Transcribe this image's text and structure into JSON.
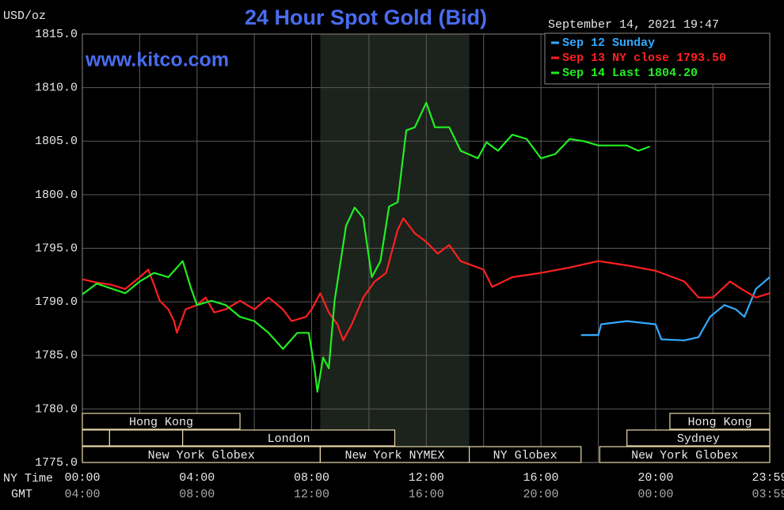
{
  "chart_data": {
    "type": "line",
    "title": "24 Hour Spot Gold (Bid)",
    "ylabel": "USD/oz",
    "watermark": "www.kitco.com",
    "timestamp": "September 14, 2021 19:47",
    "x_row_labels": [
      "NY Time",
      "GMT"
    ],
    "xlim": [
      0,
      23.9833
    ],
    "xticks": [
      {
        "value": 0,
        "label": "00:00"
      },
      {
        "value": 4,
        "label": "04:00"
      },
      {
        "value": 8,
        "label": "08:00"
      },
      {
        "value": 12,
        "label": "12:00"
      },
      {
        "value": 16,
        "label": "16:00"
      },
      {
        "value": 20,
        "label": "20:00"
      },
      {
        "value": 23.9833,
        "label": "23:59"
      }
    ],
    "gmt_ticks": [
      "04:00",
      "08:00",
      "12:00",
      "16:00",
      "20:00",
      "00:00",
      "03:59"
    ],
    "xminor": [
      2,
      6,
      10,
      14,
      18,
      22
    ],
    "ylim": [
      1775,
      1815
    ],
    "yticks": [
      {
        "value": 1775,
        "label": "1775.0"
      },
      {
        "value": 1780,
        "label": "1780.0"
      },
      {
        "value": 1785,
        "label": "1785.0"
      },
      {
        "value": 1790,
        "label": "1790.0"
      },
      {
        "value": 1795,
        "label": "1795.0"
      },
      {
        "value": 1800,
        "label": "1800.0"
      },
      {
        "value": 1805,
        "label": "1805.0"
      },
      {
        "value": 1810,
        "label": "1810.0"
      },
      {
        "value": 1815,
        "label": "1815.0"
      }
    ],
    "grid": true,
    "shaded": [
      8.3,
      13.5
    ],
    "sessions": [
      {
        "row": 0,
        "start": 0,
        "end": 5.5,
        "label": "Hong Kong"
      },
      {
        "row": 0,
        "start": 20.5,
        "end": 23.9833,
        "label": "Hong Kong"
      },
      {
        "row": 1,
        "start": 0,
        "end": 0.95
      },
      {
        "row": 1,
        "start": 0.95,
        "end": 3.5
      },
      {
        "row": 1,
        "start": 3.5,
        "end": 10.9,
        "label": "London"
      },
      {
        "row": 1,
        "start": 19,
        "end": 23.9833,
        "label": "Sydney"
      },
      {
        "row": 2,
        "start": 0,
        "end": 8.3,
        "label": "New York Globex"
      },
      {
        "row": 2,
        "start": 8.3,
        "end": 13.5,
        "label": "New York NYMEX"
      },
      {
        "row": 2,
        "start": 13.5,
        "end": 17.4,
        "label": "NY Globex"
      },
      {
        "row": 2,
        "start": 18.05,
        "end": 23.9833,
        "label": "New York Globex"
      }
    ],
    "series": [
      {
        "name": "Sep 12 Sunday",
        "color": "#33aaff",
        "x": [
          17.4,
          18,
          18.1,
          19,
          20,
          20.2,
          21,
          21.5,
          21.9,
          22.4,
          22.8,
          23.1,
          23.5,
          23.98
        ],
        "values": [
          1786.9,
          1786.9,
          1787.9,
          1788.2,
          1787.9,
          1786.5,
          1786.4,
          1786.7,
          1788.6,
          1789.7,
          1789.3,
          1788.6,
          1791.2,
          1792.3
        ]
      },
      {
        "name": "Sep 13 NY close 1793.50",
        "color": "#ff2020",
        "x": [
          0,
          0.5,
          1,
          1.5,
          2,
          2.3,
          2.5,
          2.7,
          3,
          3.2,
          3.3,
          3.6,
          4,
          4.3,
          4.6,
          5,
          5.5,
          6,
          6.5,
          7,
          7.3,
          7.8,
          8,
          8.3,
          8.6,
          8.9,
          9.1,
          9.4,
          9.8,
          10.2,
          10.6,
          11,
          11.2,
          11.6,
          12,
          12.4,
          12.8,
          13.2,
          14,
          14.3,
          15,
          16,
          17,
          18,
          19,
          20,
          21,
          21.5,
          22,
          22.6,
          23,
          23.5,
          23.98
        ],
        "values": [
          1792.1,
          1791.8,
          1791.6,
          1791.2,
          1792.3,
          1793.0,
          1791.6,
          1790.1,
          1789.3,
          1788.2,
          1787.1,
          1789.3,
          1789.7,
          1790.4,
          1789.0,
          1789.3,
          1790.1,
          1789.3,
          1790.4,
          1789.3,
          1788.2,
          1788.6,
          1789.3,
          1790.8,
          1789.0,
          1787.9,
          1786.4,
          1787.9,
          1790.4,
          1791.9,
          1792.7,
          1796.7,
          1797.8,
          1796.4,
          1795.6,
          1794.5,
          1795.3,
          1793.8,
          1793.0,
          1791.4,
          1792.3,
          1792.7,
          1793.2,
          1793.8,
          1793.4,
          1792.9,
          1791.9,
          1790.4,
          1790.4,
          1791.9,
          1791.2,
          1790.4,
          1790.8
        ]
      },
      {
        "name": "Sep 14 Last 1804.20",
        "color": "#22ee22",
        "x": [
          0,
          0.5,
          1.5,
          2,
          2.5,
          3,
          3.5,
          3.8,
          4,
          4.5,
          5,
          5.5,
          6,
          6.5,
          7,
          7.5,
          7.9,
          8.1,
          8.2,
          8.4,
          8.6,
          8.8,
          9.2,
          9.5,
          9.8,
          10.1,
          10.4,
          10.7,
          11,
          11.3,
          11.6,
          12,
          12.3,
          12.8,
          13.2,
          13.8,
          14.1,
          14.5,
          15,
          15.5,
          16,
          16.5,
          17,
          17.5,
          18,
          19,
          19.4,
          19.8
        ],
        "values": [
          1790.7,
          1791.7,
          1790.8,
          1791.9,
          1792.7,
          1792.3,
          1793.8,
          1791.2,
          1789.7,
          1790.1,
          1789.7,
          1788.6,
          1788.2,
          1787.1,
          1785.6,
          1787.1,
          1787.1,
          1783.8,
          1781.6,
          1784.8,
          1783.8,
          1790.1,
          1797.1,
          1798.8,
          1797.8,
          1792.3,
          1793.8,
          1798.9,
          1799.3,
          1806.0,
          1806.3,
          1808.6,
          1806.3,
          1806.3,
          1804.1,
          1803.4,
          1804.9,
          1804.1,
          1805.6,
          1805.2,
          1803.4,
          1803.8,
          1805.2,
          1805.0,
          1804.6,
          1804.6,
          1804.1,
          1804.5
        ]
      }
    ]
  }
}
